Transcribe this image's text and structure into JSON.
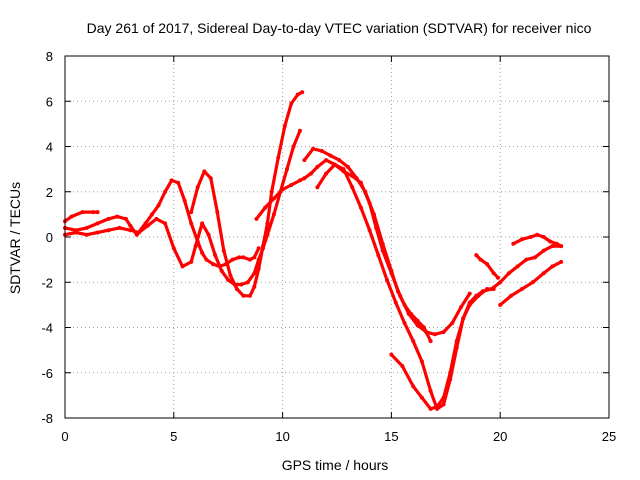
{
  "chart_data": {
    "type": "line",
    "title": "Day 261 of 2017, Sidereal Day-to-day VTEC variation (SDTVAR) for receiver nico",
    "xlabel": "GPS time / hours",
    "ylabel": "SDTVAR / TECUs",
    "xlim": [
      0,
      25
    ],
    "ylim": [
      -8,
      8
    ],
    "x_ticks": [
      0,
      5,
      10,
      15,
      20,
      25
    ],
    "y_ticks": [
      -8,
      -6,
      -4,
      -2,
      0,
      2,
      4,
      6,
      8
    ],
    "x_tick_labels": [
      "0",
      "5",
      "10",
      "15",
      "20",
      "25"
    ],
    "y_tick_labels": [
      "-8",
      "-6",
      "-4",
      "-2",
      "0",
      "2",
      "4",
      "6",
      "8"
    ],
    "grid": true,
    "legend": "none",
    "series_color": "#ff0000",
    "series": [
      {
        "x": [
          0.0,
          0.3,
          0.8,
          1.3,
          1.5
        ],
        "y": [
          0.7,
          0.9,
          1.1,
          1.1,
          1.1
        ]
      },
      {
        "x": [
          0.0,
          0.5,
          1.0,
          1.5,
          2.0,
          2.4,
          2.8,
          3.0,
          3.3,
          3.7,
          4.0,
          4.3,
          4.6,
          4.9,
          5.2,
          5.5,
          5.8,
          6.1,
          6.3,
          6.5,
          6.8,
          7.1,
          7.4,
          7.7,
          8.0,
          8.2,
          8.5,
          8.7,
          8.9
        ],
        "y": [
          0.4,
          0.3,
          0.4,
          0.6,
          0.8,
          0.9,
          0.8,
          0.5,
          0.1,
          0.6,
          1.0,
          1.4,
          2.0,
          2.5,
          2.4,
          1.6,
          0.6,
          -0.2,
          -0.7,
          -1.0,
          -1.2,
          -1.3,
          -1.2,
          -1.0,
          -0.9,
          -0.9,
          -1.0,
          -0.9,
          -0.5
        ]
      },
      {
        "x": [
          0.0,
          0.5,
          1.0,
          1.5,
          2.0,
          2.5,
          3.0,
          3.4,
          3.8,
          4.2,
          4.6,
          5.0,
          5.4,
          5.8,
          6.0,
          6.3,
          6.6,
          6.9,
          7.2,
          7.5,
          7.8,
          8.1,
          8.4,
          8.7,
          8.9,
          9.1,
          9.3,
          9.6,
          9.9,
          10.2,
          10.5,
          10.8
        ],
        "y": [
          0.1,
          0.2,
          0.1,
          0.2,
          0.3,
          0.4,
          0.3,
          0.2,
          0.5,
          0.8,
          0.6,
          -0.5,
          -1.3,
          -1.1,
          -0.4,
          0.6,
          0.1,
          -0.8,
          -1.5,
          -1.9,
          -2.1,
          -2.1,
          -2.0,
          -1.6,
          -1.0,
          -0.5,
          0.1,
          1.0,
          2.0,
          3.0,
          4.0,
          4.7
        ]
      },
      {
        "x": [
          5.8,
          6.1,
          6.4,
          6.7,
          7.0,
          7.3,
          7.6,
          7.9,
          8.2,
          8.5,
          8.7,
          8.9,
          9.1,
          9.3,
          9.5,
          9.8,
          10.1,
          10.4,
          10.7,
          10.9
        ],
        "y": [
          1.1,
          2.2,
          2.9,
          2.6,
          1.1,
          -0.6,
          -1.7,
          -2.3,
          -2.6,
          -2.6,
          -2.2,
          -1.4,
          -0.4,
          0.6,
          2.0,
          3.5,
          4.9,
          5.9,
          6.3,
          6.4
        ]
      },
      {
        "x": [
          8.8,
          9.2,
          9.6,
          10.0,
          10.4,
          10.8,
          11.0,
          11.3,
          11.6,
          12.0,
          12.4,
          12.8,
          13.2,
          13.6,
          14.0,
          14.3,
          14.6,
          15.0,
          15.4,
          15.8,
          16.2,
          16.6,
          17.0,
          17.4,
          17.8,
          18.2,
          18.6
        ],
        "y": [
          0.8,
          1.3,
          1.7,
          2.1,
          2.3,
          2.5,
          2.6,
          2.8,
          3.1,
          3.4,
          3.2,
          2.9,
          2.7,
          2.4,
          1.5,
          0.4,
          -0.6,
          -1.6,
          -2.6,
          -3.4,
          -3.9,
          -4.2,
          -4.3,
          -4.2,
          -3.8,
          -3.1,
          -2.5
        ]
      },
      {
        "x": [
          11.0,
          11.4,
          11.8,
          12.2,
          12.6,
          13.0,
          13.4,
          13.8,
          14.2,
          14.6,
          15.0,
          15.3,
          15.6,
          15.9,
          16.2,
          16.5,
          16.8
        ],
        "y": [
          3.4,
          3.9,
          3.8,
          3.6,
          3.4,
          3.1,
          2.6,
          2.0,
          1.0,
          -0.3,
          -1.5,
          -2.4,
          -3.0,
          -3.4,
          -3.7,
          -4.0,
          -4.6
        ]
      },
      {
        "x": [
          11.6,
          12.0,
          12.4,
          12.8,
          13.2,
          13.6,
          14.0,
          14.4,
          14.8,
          15.2,
          15.6,
          16.0,
          16.4,
          16.8,
          17.1,
          17.4,
          17.7,
          18.0,
          18.3,
          18.6,
          18.9,
          19.2,
          19.6,
          20.0,
          20.4,
          20.8,
          21.2,
          21.6,
          22.0,
          22.4,
          22.8
        ],
        "y": [
          2.2,
          2.8,
          3.2,
          3.0,
          2.2,
          1.3,
          0.3,
          -0.8,
          -1.9,
          -2.9,
          -3.8,
          -4.6,
          -5.5,
          -6.8,
          -7.6,
          -7.4,
          -6.3,
          -4.9,
          -3.6,
          -2.9,
          -2.6,
          -2.4,
          -2.3,
          -2.0,
          -1.6,
          -1.3,
          -1.0,
          -0.9,
          -0.6,
          -0.4,
          -0.4
        ]
      },
      {
        "x": [
          15.0,
          15.5,
          16.0,
          16.4,
          16.8,
          17.1,
          17.4,
          17.7,
          18.0,
          18.3,
          18.6,
          19.0,
          19.4,
          19.7
        ],
        "y": [
          -5.2,
          -5.7,
          -6.6,
          -7.1,
          -7.6,
          -7.5,
          -7.1,
          -6.0,
          -4.6,
          -3.6,
          -3.0,
          -2.6,
          -2.3,
          -2.3
        ]
      },
      {
        "x": [
          18.9,
          19.1,
          19.4,
          19.7,
          19.9
        ],
        "y": [
          -0.8,
          -1.0,
          -1.2,
          -1.6,
          -1.8
        ]
      },
      {
        "x": [
          20.0,
          20.5,
          21.0,
          21.5,
          22.0,
          22.4,
          22.8
        ],
        "y": [
          -3.0,
          -2.6,
          -2.3,
          -2.0,
          -1.6,
          -1.3,
          -1.1
        ]
      },
      {
        "x": [
          20.6,
          21.0,
          21.4,
          21.7,
          22.0,
          22.3,
          22.6,
          22.8
        ],
        "y": [
          -0.3,
          -0.1,
          0.0,
          0.1,
          0.0,
          -0.2,
          -0.3,
          -0.4
        ]
      }
    ]
  }
}
